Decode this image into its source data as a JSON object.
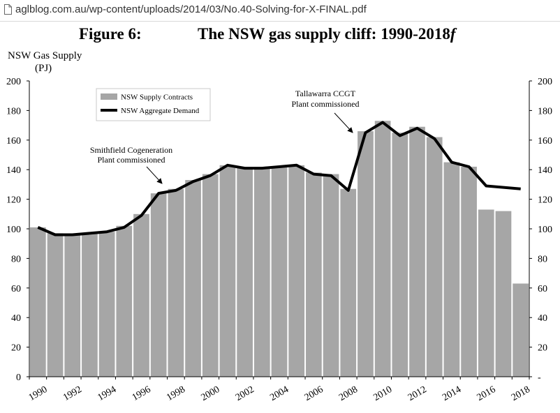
{
  "browser": {
    "url": "aglblog.com.au/wp-content/uploads/2014/03/No.40-Solving-for-X-FINAL.pdf",
    "icon": "document-icon"
  },
  "figure": {
    "label": "Figure 6:",
    "title": "The NSW gas supply cliff: 1990-2018",
    "title_suffix": "f"
  },
  "chart_data": {
    "type": "bar",
    "xlabel": "",
    "ylabel_line1": "NSW Gas Supply",
    "ylabel_line2": "(PJ)",
    "ylim": [
      0,
      200
    ],
    "y_ticks_left": [
      "0",
      "20",
      "40",
      "60",
      "80",
      "100",
      "120",
      "140",
      "160",
      "180",
      "200"
    ],
    "y_ticks_right": [
      "-",
      "20",
      "40",
      "60",
      "80",
      "100",
      "120",
      "140",
      "160",
      "180",
      "200"
    ],
    "x_tick_labels": [
      "1990",
      "1992",
      "1994",
      "1996",
      "1998",
      "2000",
      "2002",
      "2004",
      "2006",
      "2008",
      "2010",
      "2012",
      "2014",
      "2016",
      "2018"
    ],
    "categories": [
      "1990",
      "1991",
      "1992",
      "1993",
      "1994",
      "1995",
      "1996",
      "1997",
      "1998",
      "1999",
      "2000",
      "2001",
      "2002",
      "2003",
      "2004",
      "2005",
      "2006",
      "2007",
      "2008",
      "2009",
      "2010",
      "2011",
      "2012",
      "2013",
      "2014",
      "2015",
      "2016",
      "2017",
      "2018"
    ],
    "series": [
      {
        "name": "NSW Supply Contracts",
        "kind": "bar",
        "color": "#a6a6a6",
        "values": [
          101,
          97,
          96,
          97,
          98,
          102,
          110,
          124,
          127,
          133,
          137,
          143,
          141,
          141,
          142,
          143,
          138,
          137,
          127,
          166,
          173,
          165,
          169,
          162,
          145,
          142,
          113,
          112,
          63
        ]
      },
      {
        "name": "NSW Aggregate Demand",
        "kind": "line",
        "color": "#000000",
        "values": [
          101,
          96,
          96,
          97,
          98,
          101,
          109,
          124,
          126,
          132,
          136,
          143,
          141,
          141,
          142,
          143,
          137,
          136,
          126,
          165,
          172,
          163,
          168,
          161,
          145,
          142,
          129,
          128,
          127
        ]
      }
    ],
    "annotations": [
      {
        "line1": "Smithfield Cogeneration",
        "line2": "Plant commissioned",
        "points_to": "1997"
      },
      {
        "line1": "Tallawarra CCGT",
        "line2": "Plant commissioned",
        "points_to": "2009"
      }
    ],
    "legend_placement": "top-left",
    "grid": false
  }
}
